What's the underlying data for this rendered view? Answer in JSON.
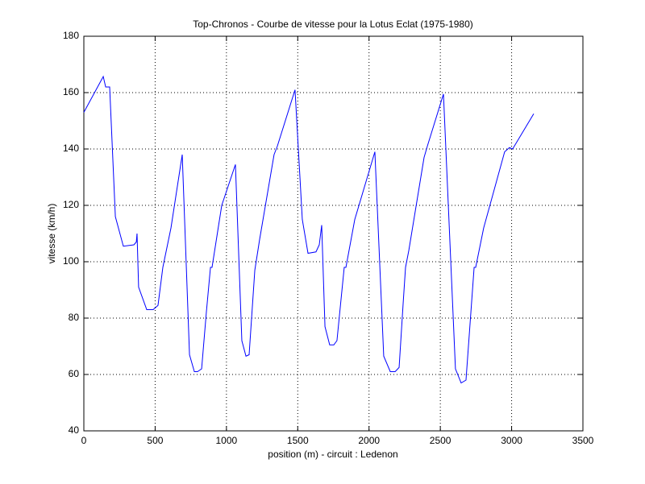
{
  "chart_data": {
    "type": "line",
    "title": "Top-Chronos - Courbe de vitesse pour la Lotus Eclat (1975-1980)",
    "x_label": "position (m) - circuit : Ledenon",
    "y_label": "vitesse (km/h)",
    "xlim": [
      0,
      3500
    ],
    "xticks": [
      0,
      500,
      1000,
      1500,
      2000,
      2500,
      3000,
      3500
    ],
    "ylim": [
      40,
      180
    ],
    "yticks": [
      40,
      60,
      80,
      100,
      120,
      140,
      160,
      180
    ],
    "grid": true,
    "series": [
      {
        "name": "vitesse",
        "color": "#0000ff",
        "x": [
          0,
          136,
          153,
          181,
          221,
          277,
          351,
          368,
          373,
          384,
          441,
          486,
          520,
          554,
          611,
          690,
          741,
          775,
          797,
          826,
          859,
          888,
          899,
          967,
          1063,
          1108,
          1137,
          1159,
          1199,
          1233,
          1334,
          1357,
          1481,
          1532,
          1572,
          1628,
          1651,
          1668,
          1691,
          1724,
          1753,
          1775,
          1826,
          1838,
          1900,
          2041,
          2103,
          2149,
          2183,
          2211,
          2239,
          2256,
          2279,
          2386,
          2409,
          2522,
          2606,
          2646,
          2680,
          2737,
          2748,
          2804,
          2951,
          2985,
          3007,
          3155
        ],
        "values": [
          153,
          165.7,
          162,
          162,
          116,
          105.5,
          106,
          107,
          110,
          91,
          83,
          83,
          84.5,
          98,
          112,
          138,
          67,
          61,
          61,
          62,
          82,
          98,
          98,
          120,
          134.5,
          72,
          66.5,
          67,
          97,
          108,
          138,
          141,
          161,
          115,
          103,
          103.5,
          106,
          113,
          77,
          70.5,
          70.5,
          72,
          98,
          98,
          115,
          139,
          66.5,
          61,
          61,
          62.5,
          85,
          98,
          104,
          137,
          141,
          159.5,
          62,
          57,
          58,
          98,
          98,
          112,
          139,
          140.5,
          140,
          152.5
        ]
      }
    ]
  }
}
